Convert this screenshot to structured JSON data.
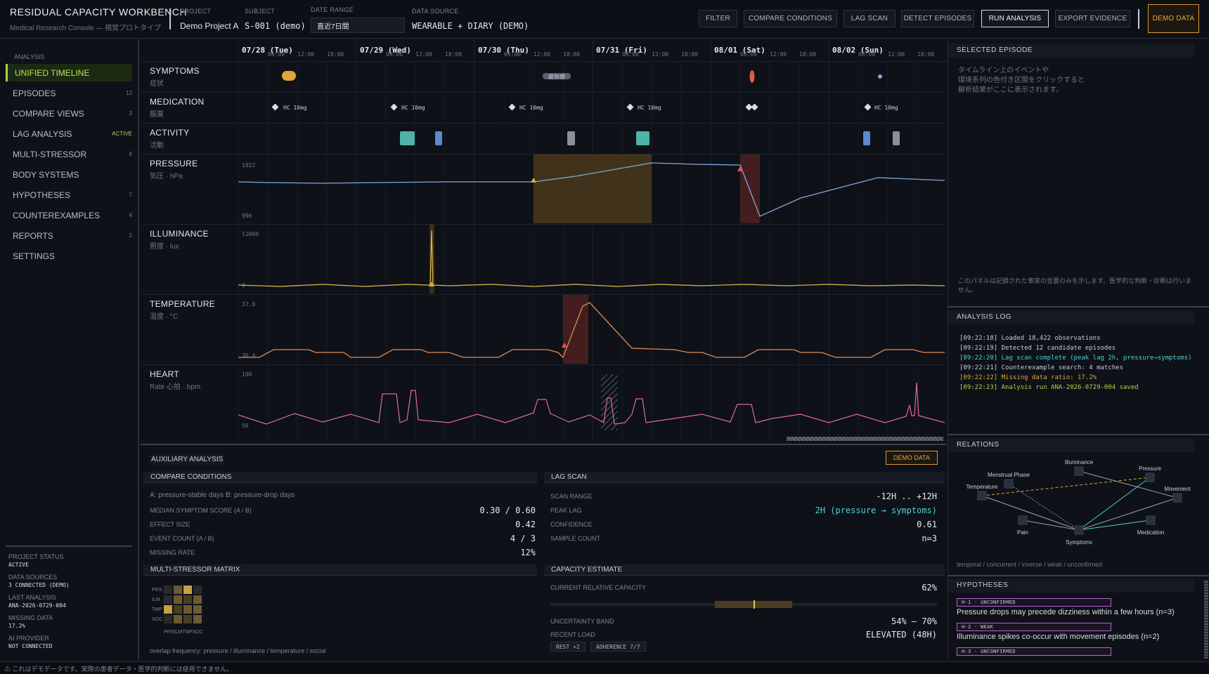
{
  "app": {
    "title": "RESIDUAL CAPACITY WORKBENCH",
    "subtitle": "Medical Research Console — 視覚プロトタイプ"
  },
  "meta": {
    "project_label": "PROJECT",
    "project": "Demo Project A",
    "subject_label": "SUBJECT",
    "subject": "S-001 (demo)",
    "date_label": "DATE RANGE",
    "date_value": "直近7日間",
    "source_label": "DATA SOURCE",
    "source": "WEARABLE + DIARY (DEMO)"
  },
  "toolbar": {
    "filter": "FILTER",
    "compare": "COMPARE CONDITIONS",
    "lag": "LAG SCAN",
    "detect": "DETECT EPISODES",
    "run": "RUN ANALYSIS",
    "export": "EXPORT EVIDENCE",
    "demo": "DEMO DATA"
  },
  "sidebar": {
    "section": "ANALYSIS",
    "items": [
      {
        "label": "UNIFIED TIMELINE",
        "count": ""
      },
      {
        "label": "EPISODES",
        "count": "12"
      },
      {
        "label": "COMPARE VIEWS",
        "count": "3"
      },
      {
        "label": "LAG ANALYSIS",
        "count": "ACTIVE"
      },
      {
        "label": "MULTI-STRESSOR",
        "count": "8"
      },
      {
        "label": "BODY SYSTEMS",
        "count": ""
      },
      {
        "label": "HYPOTHESES",
        "count": "7"
      },
      {
        "label": "COUNTEREXAMPLES",
        "count": "4"
      },
      {
        "label": "REPORTS",
        "count": "2"
      },
      {
        "label": "SETTINGS",
        "count": ""
      }
    ],
    "status": [
      {
        "label": "PROJECT STATUS",
        "value": "ACTIVE"
      },
      {
        "label": "DATA SOURCES",
        "value": "3 CONNECTED (DEMO)"
      },
      {
        "label": "LAST ANALYSIS",
        "value": "ANA-2026-0729-004"
      },
      {
        "label": "MISSING DATA",
        "value": "17.2%"
      },
      {
        "label": "AI PROVIDER",
        "value": "NOT CONNECTED"
      }
    ]
  },
  "timeline": {
    "days": [
      "07/28 (Tue)",
      "07/29 (Wed)",
      "07/30 (Thu)",
      "07/31 (Fri)",
      "08/01 (Sat)",
      "08/02 (Sun)"
    ],
    "hours": [
      "06:00",
      "12:00",
      "18:00"
    ],
    "lanes": [
      {
        "label": "SYMPTOMS",
        "sub": "症状"
      },
      {
        "label": "MEDICATION",
        "sub": "服薬"
      },
      {
        "label": "ACTIVITY",
        "sub": "活動"
      },
      {
        "label": "PRESSURE",
        "sub": "気圧 · hPa"
      },
      {
        "label": "ILLUMINANCE",
        "sub": "照度 · lux"
      },
      {
        "label": "TEMPERATURE",
        "sub": "温度 · °C"
      },
      {
        "label": "HEART",
        "sub": "Rate 心拍 · bpm"
      }
    ],
    "med_label": "HC 10mg",
    "symptom_tag": "疲労感",
    "pressure_max": "1022",
    "pressure_min": "996",
    "illum_max": "12000",
    "illum_min": "0",
    "temp_max": "37.8",
    "temp_min": "36.4",
    "heart_max": "100",
    "heart_min": "56",
    "colors": {
      "pressure": "#7fa8dc",
      "illuminance": "#e0b84a",
      "temperature": "#e08a58",
      "heart": "#e06a9a",
      "warn": "#e0a63c",
      "alert": "#e05a48"
    }
  },
  "aux": {
    "title": "AUXILIARY ANALYSIS",
    "badge": "DEMO DATA",
    "compare": {
      "title": "COMPARE CONDITIONS",
      "desc": "A: pressure-stable days   B: pressure-drop days",
      "rows": [
        {
          "k": "MEDIAN SYMPTOM SCORE (A / B)",
          "v": "0.30 / 0.60"
        },
        {
          "k": "EFFECT SIZE",
          "v": "0.42"
        },
        {
          "k": "EVENT COUNT (A / B)",
          "v": "4 / 3"
        },
        {
          "k": "MISSING RATE",
          "v": "12%"
        }
      ]
    },
    "lag": {
      "title": "LAG SCAN",
      "rows": [
        {
          "k": "SCAN RANGE",
          "v": "-12H .. +12H"
        },
        {
          "k": "PEAK LAG",
          "v": "2H (pressure → symptoms)"
        },
        {
          "k": "CONFIDENCE",
          "v": "0.61"
        },
        {
          "k": "SAMPLE COUNT",
          "v": "n=3"
        }
      ]
    },
    "matrix": {
      "title": "MULTI-STRESSOR MATRIX",
      "rows": [
        "PRS",
        "ILM",
        "TMP",
        "SOC"
      ],
      "cols": [
        "PRS",
        "ILM",
        "TMP",
        "SOC"
      ],
      "caption": "overlap frequency: pressure / illuminance / temperature / social"
    },
    "capacity": {
      "title": "CAPACITY ESTIMATE",
      "current_label": "CURRENT RELATIVE CAPACITY",
      "current": "62%",
      "current_value": 0.62,
      "band_label": "UNCERTAINTY BAND",
      "band": "54% – 70%",
      "band_low": 0.54,
      "band_high": 0.7,
      "load_label": "RECENT LOAD",
      "load": "ELEVATED (48H)",
      "chips": [
        "REST +2",
        "ADHERENCE 7/7"
      ]
    }
  },
  "right": {
    "selected_title": "SELECTED EPISODE",
    "selected_hint": "タイムライン上のイベントや\n環境系列の色付き区間をクリックすると\n解析結果がここに表示されます。",
    "selected_note": "このパネルは記録された事実の並置のみを示します。医学的な判断・診断は行いません。",
    "log_title": "ANALYSIS LOG",
    "log": [
      {
        "t": "[09:22:18] Loaded 18,422 observations",
        "c": "#c9ced8"
      },
      {
        "t": "[09:22:19] Detected 12 candidate episodes",
        "c": "#c9ced8"
      },
      {
        "t": "[09:22:20] Lag scan complete (peak lag 2h, pressure→symptoms)",
        "c": "#4fd0d8"
      },
      {
        "t": "[09:22:21] Counterexample search: 4 matches",
        "c": "#c9ced8"
      },
      {
        "t": "[09:22:22] Missing data ratio: 17.2%",
        "c": "#e0a63c"
      },
      {
        "t": "[09:22:23] Analysis run ANA-2026-0729-004 saved",
        "c": "#a8d84a"
      }
    ],
    "relations_title": "RELATIONS",
    "relations_nodes": [
      "Illuminance",
      "Menstrual Phase",
      "Pressure",
      "Temperature",
      "Movement",
      "Pain",
      "Medication",
      "Symptoms"
    ],
    "relations_legend": "temporal / concurrent / inverse / weak / unconfirmed",
    "hyp_title": "HYPOTHESES",
    "hypotheses": [
      {
        "tag": "H-1 · UNCONFIRMED",
        "text": "Pressure drops may precede dizziness within a few hours (n=3)"
      },
      {
        "tag": "H-2 · WEAK",
        "text": "Illuminance spikes co-occur with movement episodes (n=2)"
      },
      {
        "tag": "H-3 · UNCONFIRMED",
        "text": ""
      }
    ]
  },
  "footer": "⚠ これはデモデータです。実際の患者データ・医学的判断には使用できません。"
}
